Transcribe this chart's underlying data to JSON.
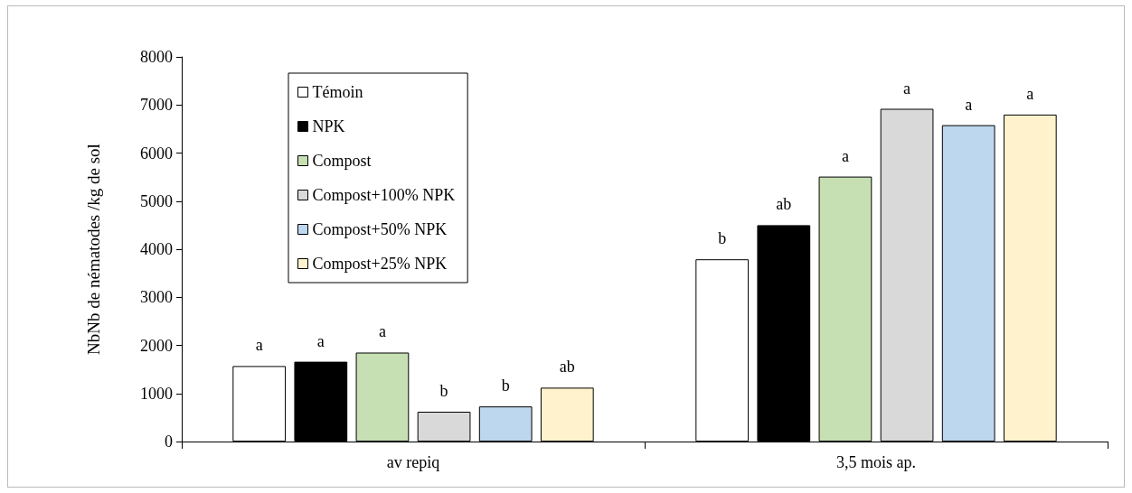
{
  "chart_data": {
    "type": "bar",
    "ylabel": "NbNb de nématodes /kg de sol",
    "categories": [
      "av repiq",
      "3,5 mois ap."
    ],
    "series": [
      {
        "name": "Témoin",
        "color": "#ffffff",
        "values": [
          1570,
          3790
        ],
        "value_labels": [
          "a",
          "b"
        ]
      },
      {
        "name": "NPK",
        "color": "#000000",
        "values": [
          1660,
          4500
        ],
        "value_labels": [
          "a",
          "ab"
        ]
      },
      {
        "name": "Compost",
        "color": "#c6e0b4",
        "values": [
          1850,
          5510
        ],
        "value_labels": [
          "a",
          "a"
        ]
      },
      {
        "name": "Compost+100% NPK",
        "color": "#d9d9d9",
        "values": [
          620,
          6920
        ],
        "value_labels": [
          "b",
          "a"
        ]
      },
      {
        "name": "Compost+50% NPK",
        "color": "#bdd7ee",
        "values": [
          730,
          6580
        ],
        "value_labels": [
          "b",
          "a"
        ]
      },
      {
        "name": "Compost+25% NPK",
        "color": "#fff2cc",
        "values": [
          1120,
          6800
        ],
        "value_labels": [
          "ab",
          "a"
        ]
      }
    ],
    "ylim": [
      0,
      8000
    ],
    "yticks": [
      0,
      1000,
      2000,
      3000,
      4000,
      5000,
      6000,
      7000,
      8000
    ],
    "grid": false,
    "legend": "top left"
  }
}
